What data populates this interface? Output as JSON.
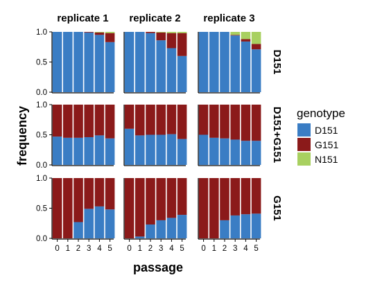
{
  "chart_data": {
    "type": "bar",
    "stacked": true,
    "xlabel": "passage",
    "ylabel": "frequency",
    "x": [
      "0",
      "1",
      "2",
      "3",
      "4",
      "5"
    ],
    "yticks": [
      "0.0",
      "0.5",
      "1.0"
    ],
    "ylim": [
      0,
      1
    ],
    "columns": [
      "replicate 1",
      "replicate 2",
      "replicate 3"
    ],
    "rows": [
      "D151",
      "D151+G151",
      "G151"
    ],
    "legend": {
      "title": "genotype",
      "position": "right",
      "entries": [
        {
          "name": "D151",
          "color": "#3A7DC4"
        },
        {
          "name": "G151",
          "color": "#8B1A1A"
        },
        {
          "name": "N151",
          "color": "#A8D060"
        }
      ]
    },
    "panels": [
      {
        "row": "D151",
        "column": "replicate 1",
        "series": {
          "D151": [
            1.0,
            1.0,
            1.0,
            0.99,
            0.95,
            0.83
          ],
          "G151": [
            0.0,
            0.0,
            0.0,
            0.01,
            0.04,
            0.15
          ],
          "N151": [
            0.0,
            0.0,
            0.0,
            0.0,
            0.01,
            0.02
          ]
        }
      },
      {
        "row": "D151",
        "column": "replicate 2",
        "series": {
          "D151": [
            1.0,
            1.0,
            0.98,
            0.86,
            0.73,
            0.6
          ],
          "G151": [
            0.0,
            0.0,
            0.02,
            0.13,
            0.25,
            0.38
          ],
          "N151": [
            0.0,
            0.0,
            0.0,
            0.01,
            0.02,
            0.02
          ]
        }
      },
      {
        "row": "D151",
        "column": "replicate 3",
        "series": {
          "D151": [
            1.0,
            1.0,
            1.0,
            0.94,
            0.84,
            0.71
          ],
          "G151": [
            0.0,
            0.0,
            0.0,
            0.01,
            0.04,
            0.09
          ],
          "N151": [
            0.0,
            0.0,
            0.0,
            0.05,
            0.12,
            0.2
          ]
        }
      },
      {
        "row": "D151+G151",
        "column": "replicate 1",
        "series": {
          "D151": [
            0.47,
            0.45,
            0.45,
            0.46,
            0.49,
            0.44
          ],
          "G151": [
            0.53,
            0.55,
            0.55,
            0.54,
            0.51,
            0.56
          ],
          "N151": [
            0,
            0,
            0,
            0,
            0,
            0
          ]
        }
      },
      {
        "row": "D151+G151",
        "column": "replicate 2",
        "series": {
          "D151": [
            0.6,
            0.49,
            0.5,
            0.5,
            0.51,
            0.43
          ],
          "G151": [
            0.4,
            0.51,
            0.5,
            0.5,
            0.49,
            0.57
          ],
          "N151": [
            0,
            0,
            0,
            0,
            0,
            0
          ]
        }
      },
      {
        "row": "D151+G151",
        "column": "replicate 3",
        "series": {
          "D151": [
            0.5,
            0.45,
            0.44,
            0.42,
            0.4,
            0.4
          ],
          "G151": [
            0.5,
            0.55,
            0.56,
            0.58,
            0.6,
            0.6
          ],
          "N151": [
            0,
            0,
            0,
            0,
            0,
            0
          ]
        }
      },
      {
        "row": "G151",
        "column": "replicate 1",
        "series": {
          "D151": [
            0.0,
            0.0,
            0.27,
            0.49,
            0.53,
            0.48
          ],
          "G151": [
            1.0,
            1.0,
            0.73,
            0.51,
            0.47,
            0.52
          ],
          "N151": [
            0,
            0,
            0,
            0,
            0,
            0
          ]
        }
      },
      {
        "row": "G151",
        "column": "replicate 2",
        "series": {
          "D151": [
            0.0,
            0.03,
            0.23,
            0.3,
            0.34,
            0.39
          ],
          "G151": [
            1.0,
            0.97,
            0.77,
            0.7,
            0.66,
            0.61
          ],
          "N151": [
            0,
            0,
            0,
            0,
            0,
            0
          ]
        }
      },
      {
        "row": "G151",
        "column": "replicate 3",
        "series": {
          "D151": [
            0.0,
            0.0,
            0.3,
            0.38,
            0.4,
            0.41
          ],
          "G151": [
            1.0,
            1.0,
            0.7,
            0.62,
            0.6,
            0.59
          ],
          "N151": [
            0,
            0,
            0,
            0,
            0,
            0
          ]
        }
      }
    ]
  }
}
